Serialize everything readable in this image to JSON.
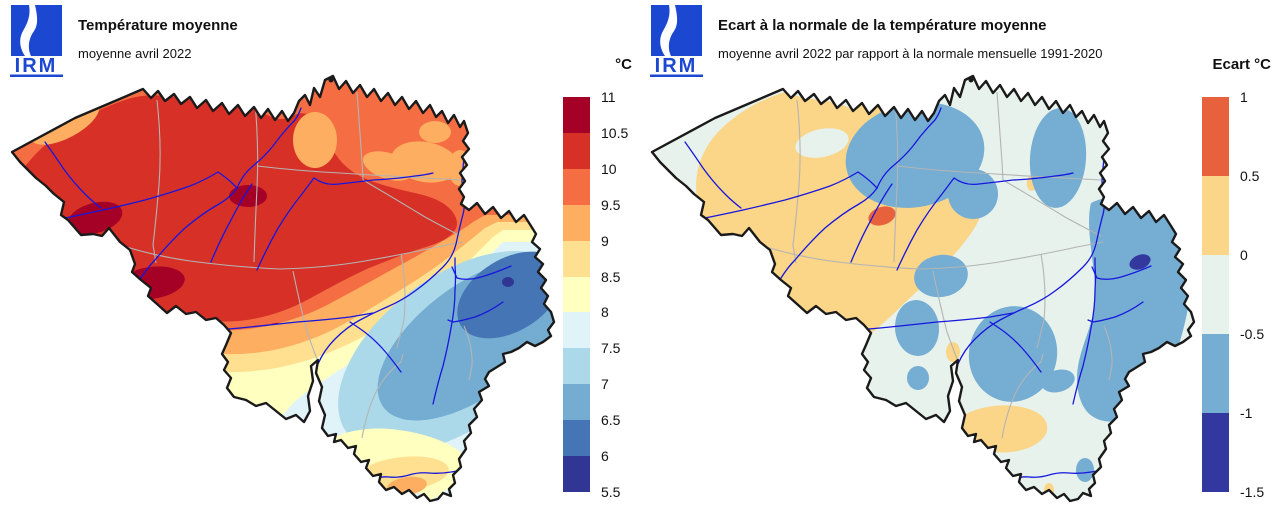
{
  "logo": {
    "text": "IRM",
    "color": "#1c47d1"
  },
  "map": {
    "outline_color": "#1a1a1a",
    "province_border_color": "#b4b4b4",
    "river_color": "#1717dd",
    "background": "#ffffff"
  },
  "left_panel": {
    "title": "Température moyenne",
    "subtitle": "moyenne avril 2022",
    "legend": {
      "title": "°C",
      "tick_labels": [
        "11",
        "10.5",
        "10",
        "9.5",
        "9",
        "8.5",
        "8",
        "7.5",
        "7",
        "6.5",
        "6",
        "5.5"
      ],
      "segment_colors": [
        "#a50026",
        "#d73027",
        "#f46d43",
        "#fdae61",
        "#fee090",
        "#ffffbf",
        "#e0f3f8",
        "#abd9e9",
        "#74add1",
        "#4575b4",
        "#313695"
      ]
    }
  },
  "right_panel": {
    "title": "Ecart à la normale de la température moyenne",
    "subtitle": "moyenne avril 2022 par rapport à la normale mensuelle 1991-2020",
    "legend": {
      "title": "Ecart °C",
      "tick_labels": [
        "1",
        "0.5",
        "0",
        "-0.5",
        "-1",
        "-1.5"
      ],
      "segment_colors": [
        "#e8613d",
        "#fbd588",
        "#e7f2ec",
        "#75add3",
        "#32389d"
      ]
    }
  }
}
